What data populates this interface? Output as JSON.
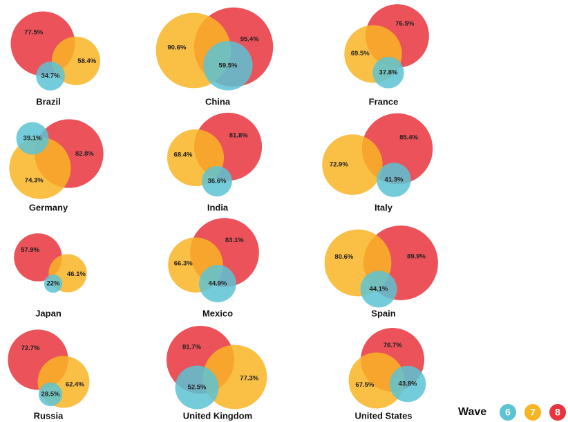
{
  "chart_data": {
    "type": "venn",
    "legend_title": "Wave",
    "categories": [
      "Brazil",
      "China",
      "France",
      "Germany",
      "India",
      "Italy",
      "Japan",
      "Mexico",
      "Spain",
      "Russia",
      "United Kingdom",
      "United States"
    ],
    "series": [
      {
        "name": "6",
        "color": "#5cc3d5",
        "values": [
          34.7,
          59.5,
          37.8,
          39.1,
          36.6,
          41.3,
          22,
          44.9,
          44.1,
          28.5,
          52.5,
          43.8
        ],
        "value_labels": [
          "34.7%",
          "59.5%",
          "37.8%",
          "39.1%",
          "36.6%",
          "41.3%",
          "22%",
          "44.9%",
          "44.1%",
          "28.5%",
          "52.5%",
          "43.8%"
        ]
      },
      {
        "name": "7",
        "color": "#f9b424",
        "values": [
          58.4,
          90.6,
          69.5,
          74.3,
          68.4,
          72.9,
          46.1,
          66.3,
          80.6,
          62.4,
          77.3,
          67.5
        ],
        "value_labels": [
          "58.4%",
          "90.6%",
          "69.5%",
          "74.3%",
          "68.4%",
          "72.9%",
          "46.1%",
          "66.3%",
          "80.6%",
          "62.4%",
          "77.3%",
          "67.5%"
        ]
      },
      {
        "name": "8",
        "color": "#e8343c",
        "values": [
          77.5,
          95.4,
          76.5,
          82.8,
          81.8,
          85.4,
          57.9,
          83.1,
          89.9,
          72.7,
          81.7,
          76.7
        ],
        "value_labels": [
          "77.5%",
          "95.4%",
          "76.5%",
          "82.8%",
          "81.8%",
          "85.4%",
          "57.9%",
          "83.1%",
          "89.9%",
          "72.7%",
          "81.7%",
          "76.7%"
        ]
      }
    ]
  }
}
